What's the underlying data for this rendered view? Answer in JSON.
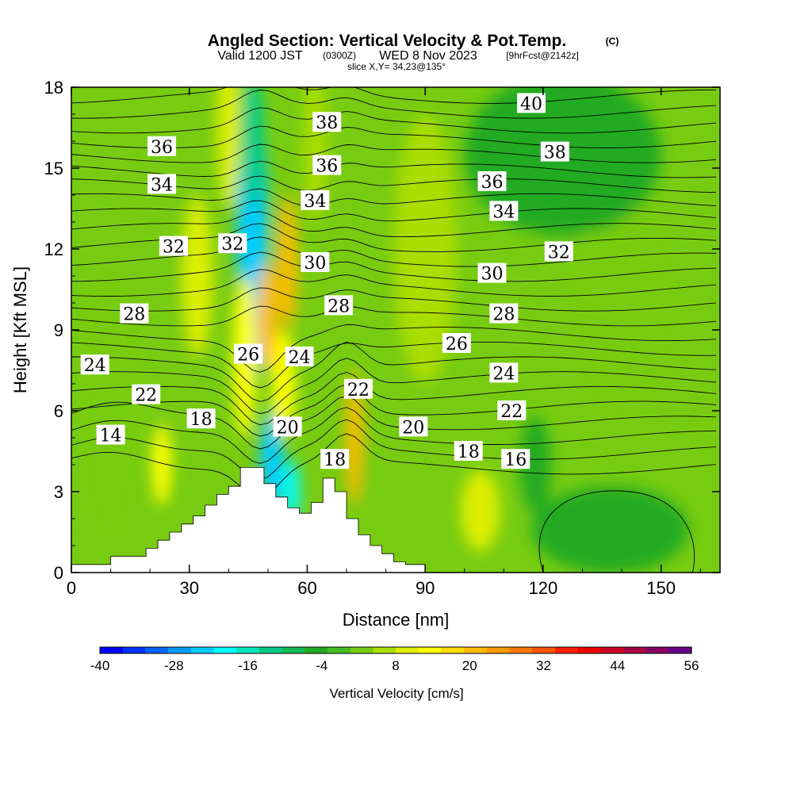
{
  "title": {
    "main": "Angled Section: Vertical Velocity & Pot.Temp.",
    "main_suffix": "(C)",
    "valid_prefix": "Valid 1200 JST",
    "valid_utc": "(0300Z)",
    "valid_date": "WED 8 Nov 2023",
    "forecast": "[9hrFcst@2142z]",
    "slice": "slice X,Y= 34,23@135°"
  },
  "chart_data": {
    "type": "heatmap",
    "xlabel": "Distance [nm]",
    "ylabel": "Height [Kft MSL]",
    "xlim": [
      0,
      165
    ],
    "ylim": [
      0,
      18
    ],
    "xticks": [
      "0",
      "30",
      "60",
      "90",
      "120",
      "150"
    ],
    "yticks": [
      "0",
      "3",
      "6",
      "9",
      "12",
      "15",
      "18"
    ],
    "background_value_cm_s": 2,
    "colorbar": {
      "title": "Vertical Velocity [cm/s]",
      "min": -40,
      "max": 56,
      "step": 4,
      "tick_labels": [
        "-40",
        "-28",
        "-16",
        "-4",
        "8",
        "20",
        "32",
        "44",
        "56"
      ],
      "colors": [
        "#0000ff",
        "#0033ff",
        "#0066ff",
        "#0099ff",
        "#00ccff",
        "#00ffff",
        "#00e6bb",
        "#00cc88",
        "#11bb55",
        "#22aa22",
        "#44bb22",
        "#77cc11",
        "#aadd00",
        "#ddee00",
        "#ffff00",
        "#ffdd00",
        "#ffbb00",
        "#ff9900",
        "#ff7700",
        "#ff5500",
        "#ff2200",
        "#ee0000",
        "#cc0022",
        "#aa0044",
        "#880066",
        "#660088"
      ]
    },
    "terrain_kft": {
      "x": [
        0,
        10,
        10,
        19,
        19,
        22,
        22,
        25,
        25,
        28,
        28,
        31,
        31,
        34,
        34,
        37,
        37,
        40,
        40,
        43,
        43,
        49,
        49,
        52,
        52,
        55,
        55,
        58,
        58,
        61,
        61,
        64,
        64,
        67,
        67,
        70,
        70,
        73,
        73,
        76,
        76,
        79,
        79,
        82,
        82,
        85,
        85,
        90,
        90,
        165
      ],
      "y": [
        0.3,
        0.3,
        0.6,
        0.6,
        0.9,
        0.9,
        1.2,
        1.2,
        1.5,
        1.5,
        1.8,
        1.8,
        2.1,
        2.1,
        2.5,
        2.5,
        2.9,
        2.9,
        3.2,
        3.2,
        3.9,
        3.9,
        3.3,
        3.3,
        2.8,
        2.8,
        2.4,
        2.4,
        2.2,
        2.2,
        2.6,
        2.6,
        3.5,
        3.5,
        3.0,
        3.0,
        2.0,
        2.0,
        1.4,
        1.4,
        1.0,
        1.0,
        0.7,
        0.7,
        0.4,
        0.4,
        0.3,
        0.3,
        0.0,
        0.0
      ]
    },
    "wvel_features": [
      {
        "x": 46,
        "y": 12.5,
        "rx": 4,
        "ry": 5.5,
        "value": -22
      },
      {
        "x": 46,
        "y": 16.0,
        "rx": 3,
        "ry": 2.5,
        "value": -14
      },
      {
        "x": 51,
        "y": 4.2,
        "rx": 3,
        "ry": 1.8,
        "value": -22
      },
      {
        "x": 56,
        "y": 3.0,
        "rx": 2.2,
        "ry": 1.2,
        "value": -18
      },
      {
        "x": 44,
        "y": 8.0,
        "rx": 3,
        "ry": 3.0,
        "value": 14
      },
      {
        "x": 50,
        "y": 9.5,
        "rx": 2.5,
        "ry": 2.0,
        "value": 20
      },
      {
        "x": 55,
        "y": 11.5,
        "rx": 2.5,
        "ry": 2.5,
        "value": 20
      },
      {
        "x": 54,
        "y": 7.0,
        "rx": 3,
        "ry": 2.0,
        "value": 14
      },
      {
        "x": 72,
        "y": 5.0,
        "rx": 2.2,
        "ry": 2.5,
        "value": 20
      },
      {
        "x": 23,
        "y": 4.0,
        "rx": 2.5,
        "ry": 1.5,
        "value": 14
      },
      {
        "x": 104,
        "y": 2.3,
        "rx": 5,
        "ry": 1.5,
        "value": 8
      },
      {
        "x": 32,
        "y": 11.0,
        "rx": 4,
        "ry": 3.0,
        "value": 8
      },
      {
        "x": 10,
        "y": 6.0,
        "rx": 5,
        "ry": 4.5,
        "value": 4
      },
      {
        "x": 140,
        "y": 10.0,
        "rx": 12,
        "ry": 4.0,
        "value": 4
      },
      {
        "x": 90,
        "y": 12.0,
        "rx": 8,
        "ry": 5.0,
        "value": 6
      },
      {
        "x": 137,
        "y": 1.6,
        "rx": 20,
        "ry": 1.6,
        "value": -4
      },
      {
        "x": 125,
        "y": 15.5,
        "rx": 25,
        "ry": 3.0,
        "value": -4
      },
      {
        "x": 118,
        "y": 4.0,
        "rx": 4,
        "ry": 1.8,
        "value": -5
      },
      {
        "x": 40,
        "y": 16.5,
        "rx": 3,
        "ry": 3.0,
        "value": 8
      },
      {
        "x": 62,
        "y": 16.0,
        "rx": 3,
        "ry": 3.0,
        "value": 6
      }
    ],
    "pot_temp_labels": [
      {
        "text": "40",
        "x": 117,
        "y": 17.4
      },
      {
        "text": "38",
        "x": 65,
        "y": 16.7
      },
      {
        "text": "36",
        "x": 23,
        "y": 15.8
      },
      {
        "text": "38",
        "x": 123,
        "y": 15.6
      },
      {
        "text": "36",
        "x": 65,
        "y": 15.1
      },
      {
        "text": "34",
        "x": 23,
        "y": 14.4
      },
      {
        "text": "36",
        "x": 107,
        "y": 14.5
      },
      {
        "text": "34",
        "x": 62,
        "y": 13.8
      },
      {
        "text": "34",
        "x": 110,
        "y": 13.4
      },
      {
        "text": "32",
        "x": 41,
        "y": 12.2
      },
      {
        "text": "32",
        "x": 26,
        "y": 12.1
      },
      {
        "text": "32",
        "x": 124,
        "y": 11.9
      },
      {
        "text": "30",
        "x": 62,
        "y": 11.5
      },
      {
        "text": "30",
        "x": 107,
        "y": 11.1
      },
      {
        "text": "28",
        "x": 68,
        "y": 9.9
      },
      {
        "text": "28",
        "x": 16,
        "y": 9.6
      },
      {
        "text": "28",
        "x": 110,
        "y": 9.6
      },
      {
        "text": "26",
        "x": 98,
        "y": 8.5
      },
      {
        "text": "26",
        "x": 45,
        "y": 8.1
      },
      {
        "text": "24",
        "x": 58,
        "y": 8.0
      },
      {
        "text": "24",
        "x": 6,
        "y": 7.7
      },
      {
        "text": "24",
        "x": 110,
        "y": 7.4
      },
      {
        "text": "22",
        "x": 73,
        "y": 6.8
      },
      {
        "text": "22",
        "x": 19,
        "y": 6.6
      },
      {
        "text": "22",
        "x": 112,
        "y": 6.0
      },
      {
        "text": "18",
        "x": 33,
        "y": 5.7
      },
      {
        "text": "20",
        "x": 55,
        "y": 5.4
      },
      {
        "text": "20",
        "x": 87,
        "y": 5.4
      },
      {
        "text": "14",
        "x": 10,
        "y": 5.1
      },
      {
        "text": "18",
        "x": 101,
        "y": 4.5
      },
      {
        "text": "16",
        "x": 113,
        "y": 4.2
      },
      {
        "text": "18",
        "x": 67,
        "y": 4.2
      }
    ]
  }
}
